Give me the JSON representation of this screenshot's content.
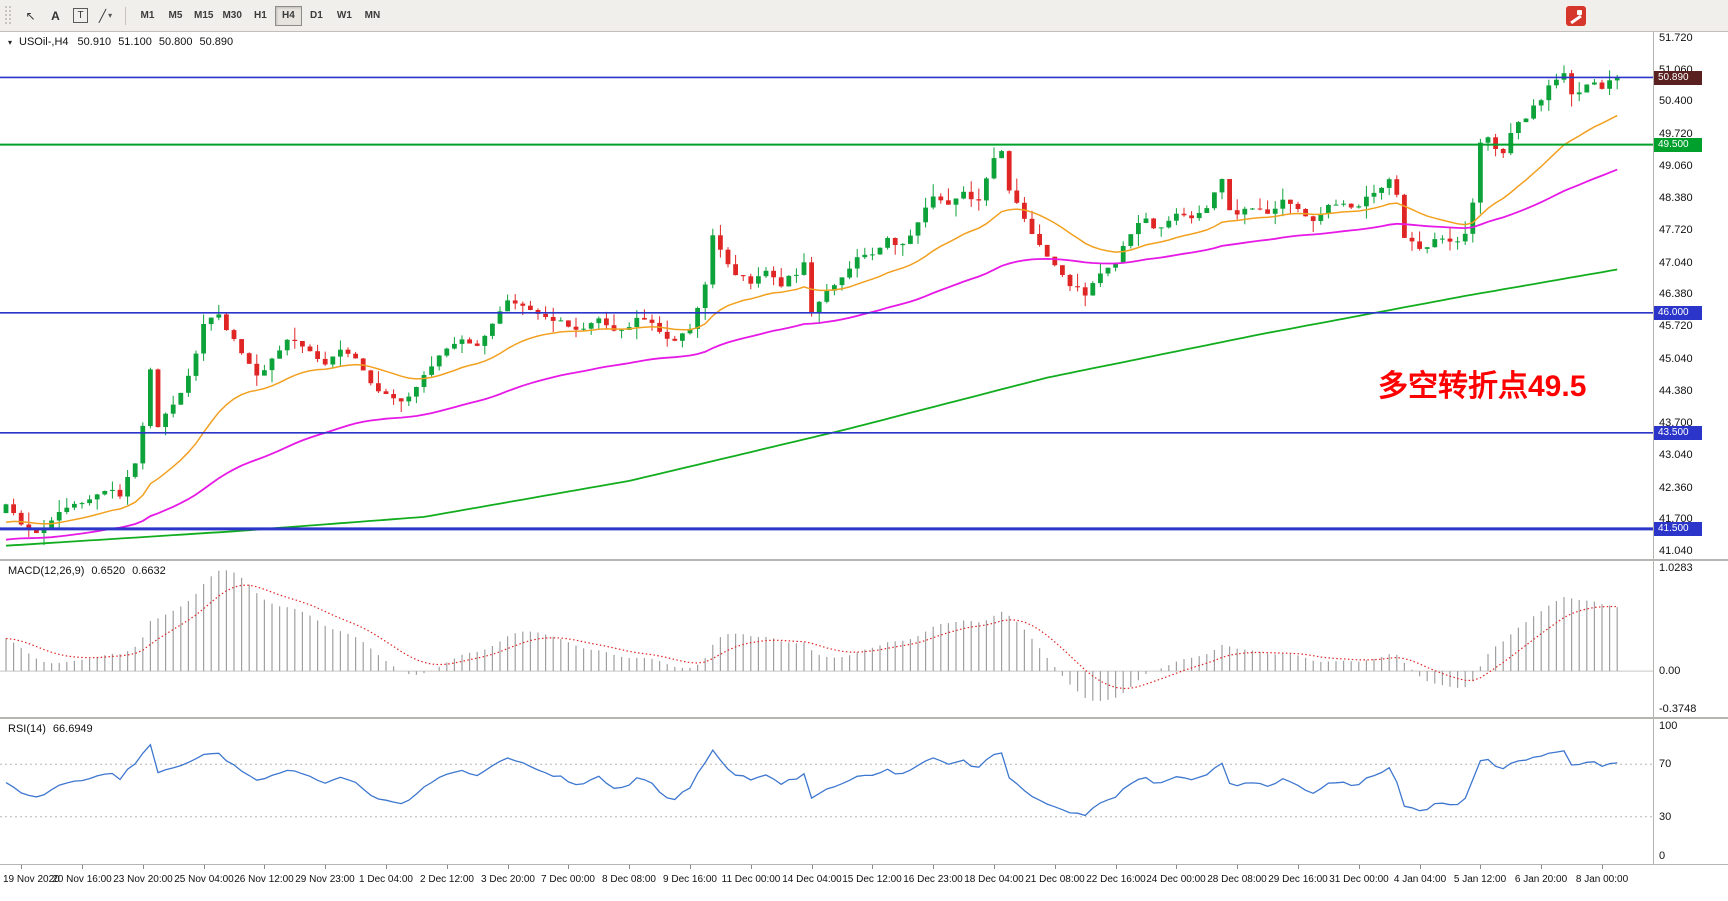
{
  "toolbar": {
    "tools": [
      {
        "name": "cursor-tool",
        "glyph": "↖"
      },
      {
        "name": "text-tool",
        "glyph": "A"
      },
      {
        "name": "label-tool",
        "glyph": "T"
      },
      {
        "name": "shapes-tool",
        "glyph": "╱",
        "caret": "▾"
      }
    ],
    "timeframes": [
      "M1",
      "M5",
      "M15",
      "M30",
      "H1",
      "H4",
      "D1",
      "W1",
      "MN"
    ],
    "active_timeframe": "H4"
  },
  "chart_header": {
    "marker": "▾",
    "symbol": "USOil-,H4",
    "open": "50.910",
    "high": "51.100",
    "low": "50.800",
    "close": "50.890"
  },
  "annotation": {
    "text": "多空转折点49.5",
    "color": "#ff0000"
  },
  "price_axis": {
    "scale_max": 51.72,
    "scale_min": 41.04,
    "labels": [
      "51.720",
      "51.060",
      "50.400",
      "49.720",
      "49.060",
      "48.380",
      "47.720",
      "47.040",
      "46.380",
      "45.720",
      "45.040",
      "44.380",
      "43.700",
      "43.040",
      "42.360",
      "41.700",
      "41.040"
    ]
  },
  "levels": {
    "lines": [
      {
        "price": 50.9,
        "color": "#2b35c9",
        "width": 1.6
      },
      {
        "price": 49.5,
        "color": "#00a02c",
        "width": 2
      },
      {
        "price": 46.0,
        "color": "#2b35c9",
        "width": 1.6
      },
      {
        "price": 43.5,
        "color": "#2b35c9",
        "width": 1.6
      },
      {
        "price": 41.5,
        "color": "#2b35c9",
        "width": 3
      }
    ],
    "badges": [
      {
        "text": "50.890",
        "price": 50.89,
        "color": "#5a2020"
      },
      {
        "text": "49.500",
        "price": 49.5,
        "color": "#00a02c"
      },
      {
        "text": "46.000",
        "price": 46.0,
        "color": "#2b35c9"
      },
      {
        "text": "43.500",
        "price": 43.5,
        "color": "#2b35c9"
      },
      {
        "text": "41.500",
        "price": 41.5,
        "color": "#2b35c9"
      }
    ]
  },
  "chart_data": {
    "type": "candlestick",
    "symbol": "USOil-",
    "timeframe": "H4",
    "candles": 213,
    "up_color": "#0da23a",
    "down_color": "#e02525",
    "noise": 0.07,
    "wick": 0.26,
    "close_path_anchors": [
      [
        0,
        41.95
      ],
      [
        2,
        41.6
      ],
      [
        4,
        41.35
      ],
      [
        7,
        41.9
      ],
      [
        10,
        42.1
      ],
      [
        13,
        42.35
      ],
      [
        15,
        42.2
      ],
      [
        17,
        42.9
      ],
      [
        18,
        43.6
      ],
      [
        19,
        44.8
      ],
      [
        20,
        43.65
      ],
      [
        21,
        43.95
      ],
      [
        23,
        44.35
      ],
      [
        25,
        45.1
      ],
      [
        26,
        45.8
      ],
      [
        28,
        45.95
      ],
      [
        30,
        45.45
      ],
      [
        32,
        44.95
      ],
      [
        33,
        44.65
      ],
      [
        35,
        45.05
      ],
      [
        37,
        45.45
      ],
      [
        40,
        45.2
      ],
      [
        42,
        44.95
      ],
      [
        44,
        45.3
      ],
      [
        46,
        45.05
      ],
      [
        48,
        44.55
      ],
      [
        50,
        44.25
      ],
      [
        52,
        44.1
      ],
      [
        54,
        44.45
      ],
      [
        56,
        44.9
      ],
      [
        58,
        45.25
      ],
      [
        60,
        45.45
      ],
      [
        62,
        45.35
      ],
      [
        64,
        45.8
      ],
      [
        66,
        46.2
      ],
      [
        68,
        46.1
      ],
      [
        70,
        45.95
      ],
      [
        72,
        45.85
      ],
      [
        74,
        45.7
      ],
      [
        76,
        45.6
      ],
      [
        78,
        45.85
      ],
      [
        80,
        45.6
      ],
      [
        82,
        45.75
      ],
      [
        84,
        45.9
      ],
      [
        86,
        45.55
      ],
      [
        88,
        45.45
      ],
      [
        90,
        45.7
      ],
      [
        92,
        46.6
      ],
      [
        93,
        47.55
      ],
      [
        94,
        47.3
      ],
      [
        96,
        46.85
      ],
      [
        98,
        46.6
      ],
      [
        100,
        46.9
      ],
      [
        102,
        46.6
      ],
      [
        104,
        46.85
      ],
      [
        105,
        47.0
      ],
      [
        106,
        46.0
      ],
      [
        108,
        46.4
      ],
      [
        110,
        46.8
      ],
      [
        112,
        47.1
      ],
      [
        114,
        47.25
      ],
      [
        116,
        47.5
      ],
      [
        118,
        47.4
      ],
      [
        120,
        47.9
      ],
      [
        122,
        48.45
      ],
      [
        124,
        48.3
      ],
      [
        126,
        48.5
      ],
      [
        128,
        48.35
      ],
      [
        130,
        49.2
      ],
      [
        131,
        49.3
      ],
      [
        132,
        48.6
      ],
      [
        134,
        47.9
      ],
      [
        136,
        47.4
      ],
      [
        138,
        47.0
      ],
      [
        140,
        46.6
      ],
      [
        142,
        46.35
      ],
      [
        144,
        46.8
      ],
      [
        146,
        47.1
      ],
      [
        148,
        47.7
      ],
      [
        150,
        47.9
      ],
      [
        152,
        47.75
      ],
      [
        154,
        48.1
      ],
      [
        156,
        48.0
      ],
      [
        158,
        48.2
      ],
      [
        160,
        48.75
      ],
      [
        161,
        48.2
      ],
      [
        162,
        48.05
      ],
      [
        164,
        48.2
      ],
      [
        166,
        48.0
      ],
      [
        168,
        48.3
      ],
      [
        170,
        48.15
      ],
      [
        172,
        47.95
      ],
      [
        174,
        48.2
      ],
      [
        176,
        48.3
      ],
      [
        178,
        48.2
      ],
      [
        180,
        48.5
      ],
      [
        182,
        48.75
      ],
      [
        183,
        48.4
      ],
      [
        184,
        47.6
      ],
      [
        186,
        47.35
      ],
      [
        188,
        47.5
      ],
      [
        190,
        47.45
      ],
      [
        192,
        47.6
      ],
      [
        193,
        48.3
      ],
      [
        194,
        49.55
      ],
      [
        195,
        49.7
      ],
      [
        196,
        49.45
      ],
      [
        197,
        49.3
      ],
      [
        198,
        49.8
      ],
      [
        200,
        50.1
      ],
      [
        202,
        50.45
      ],
      [
        204,
        50.9
      ],
      [
        205,
        51.05
      ],
      [
        206,
        50.5
      ],
      [
        207,
        50.65
      ],
      [
        208,
        50.8
      ],
      [
        210,
        50.7
      ],
      [
        212,
        50.89
      ]
    ],
    "moving_averages": [
      {
        "name": "fast",
        "type": "ema",
        "period": 21,
        "seed": 41.6,
        "color": "#f2a020",
        "width": 1.5
      },
      {
        "name": "mid",
        "type": "ema",
        "period": 62,
        "seed": 41.25,
        "color": "#e619e6",
        "width": 1.8
      },
      {
        "name": "slow",
        "type": "anchors",
        "color": "#12ad1f",
        "width": 1.8,
        "anchors": [
          [
            0,
            41.15
          ],
          [
            30,
            41.45
          ],
          [
            55,
            41.75
          ],
          [
            82,
            42.5
          ],
          [
            110,
            43.55
          ],
          [
            137,
            44.65
          ],
          [
            165,
            45.55
          ],
          [
            192,
            46.35
          ],
          [
            212,
            46.9
          ]
        ]
      }
    ],
    "x_labels": [
      "19 Nov 2020",
      "20 Nov 16:00",
      "23 Nov 20:00",
      "25 Nov 04:00",
      "26 Nov 12:00",
      "29 Nov 23:00",
      "1 Dec 04:00",
      "2 Dec 12:00",
      "3 Dec 20:00",
      "7 Dec 00:00",
      "8 Dec 08:00",
      "9 Dec 16:00",
      "11 Dec 00:00",
      "14 Dec 04:00",
      "15 Dec 12:00",
      "16 Dec 23:00",
      "18 Dec 04:00",
      "21 Dec 08:00",
      "22 Dec 16:00",
      "24 Dec 00:00",
      "28 Dec 08:00",
      "29 Dec 16:00",
      "31 Dec 00:00",
      "4 Jan 04:00",
      "5 Jan 12:00",
      "6 Jan 20:00",
      "8 Jan 00:00"
    ],
    "x_label_first_index": 2,
    "x_label_step": 8,
    "indicators": {
      "macd": {
        "label": "MACD(12,26,9)",
        "value_main": "0.6520",
        "value_signal": "0.6632",
        "fast": 12,
        "slow": 26,
        "signal": 9,
        "scale_max": 1.0283,
        "scale_min": -0.3748,
        "axis_labels": [
          "1.0283",
          "0.00",
          "-0.3748"
        ],
        "hist_color": "#a0a0a0",
        "signal_color": "#e02525"
      },
      "rsi": {
        "label": "RSI(14)",
        "value": "66.6949",
        "period": 14,
        "scale_max": 100,
        "scale_min": 0,
        "levels": [
          70,
          30
        ],
        "axis_labels": [
          "100",
          "70",
          "30",
          "0"
        ],
        "line_color": "#3e77cf"
      }
    }
  }
}
